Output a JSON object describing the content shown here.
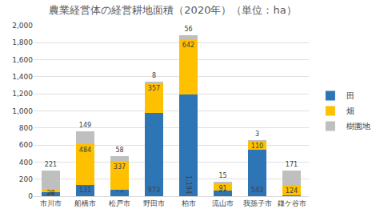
{
  "chart_data": {
    "type": "bar",
    "title": "農業経営体の経営耕地面積（2020年）（単位：ha）",
    "categories": [
      "市川市",
      "船橋市",
      "松戸市",
      "野田市",
      "柏市",
      "流山市",
      "我孫子市",
      "鎌ケ谷市"
    ],
    "series": [
      {
        "name": "田",
        "color": "#2e75b6",
        "values": [
          50,
          131,
          73,
          973,
          1194,
          67,
          543,
          5
        ],
        "value_labels": [
          "50",
          "131",
          "73",
          "973",
          "1,194",
          "67",
          "543",
          "5"
        ]
      },
      {
        "name": "畑",
        "color": "#ffc000",
        "values": [
          28,
          484,
          337,
          357,
          642,
          91,
          110,
          124
        ]
      },
      {
        "name": "樹園地",
        "color": "#bfbfbf",
        "values": [
          221,
          149,
          58,
          8,
          56,
          15,
          3,
          171
        ]
      }
    ],
    "stacked": true,
    "data_labels": true,
    "ylim": [
      0,
      2000
    ],
    "yticks": [
      0,
      200,
      400,
      600,
      800,
      {
        "value": 1000,
        "label": "1,000"
      },
      {
        "value": 1200,
        "label": "1,200"
      },
      {
        "value": 1400,
        "label": "1,400"
      },
      {
        "value": 1600,
        "label": "1,600"
      },
      {
        "value": 1800,
        "label": "1,800"
      },
      {
        "value": 2000,
        "label": "2,000"
      }
    ],
    "grid": true,
    "legend": "right"
  }
}
